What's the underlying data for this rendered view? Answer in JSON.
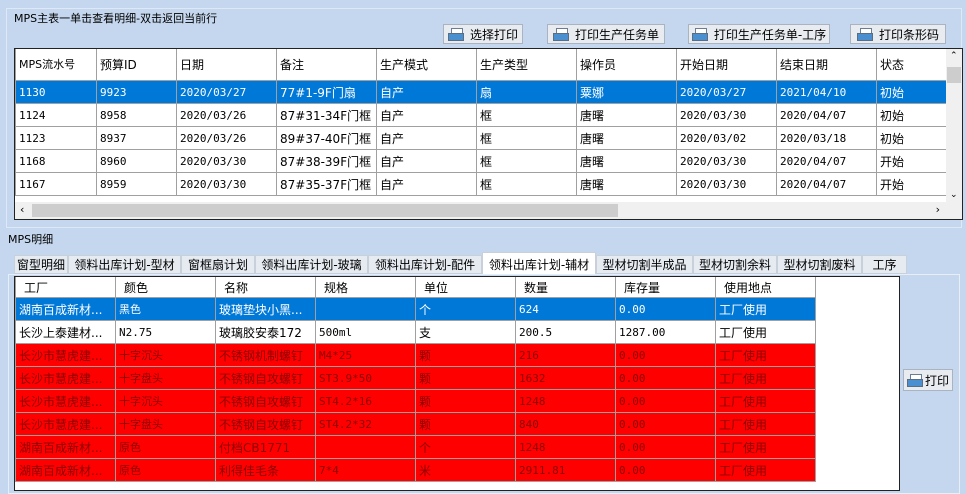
{
  "master": {
    "title": "MPS主表一单击查看明细-双击返回当前行",
    "buttons": [
      "选择打印",
      "打印生产任务单",
      "打印生产任务单-工序",
      "打印条形码"
    ],
    "columns": [
      "MPS流水号",
      "预算ID",
      "日期",
      "备注",
      "生产模式",
      "生产类型",
      "操作员",
      "开始日期",
      "结束日期",
      "状态"
    ],
    "rows": [
      [
        "1130",
        "9923",
        "2020/03/27",
        "77#1-9F门扇",
        "自产",
        "扇",
        "粟娜",
        "2020/03/27",
        "2021/04/10",
        "初始"
      ],
      [
        "1124",
        "8958",
        "2020/03/26",
        "87#31-34F门框",
        "自产",
        "框",
        "唐曙",
        "2020/03/30",
        "2020/04/07",
        "初始"
      ],
      [
        "1123",
        "8937",
        "2020/03/26",
        "89#37-40F门框",
        "自产",
        "框",
        "唐曙",
        "2020/03/02",
        "2020/03/18",
        "初始"
      ],
      [
        "1168",
        "8960",
        "2020/03/30",
        "87#38-39F门框",
        "自产",
        "框",
        "唐曙",
        "2020/03/30",
        "2020/04/07",
        "开始"
      ],
      [
        "1167",
        "8959",
        "2020/03/30",
        "87#35-37F门框",
        "自产",
        "框",
        "唐曙",
        "2020/03/30",
        "2020/04/07",
        "开始"
      ]
    ],
    "selected_row": 0
  },
  "detail": {
    "title": "MPS明细",
    "tabs": [
      "窗型明细",
      "领料出库计划-型材",
      "窗框扇计划",
      "领料出库计划-玻璃",
      "领料出库计划-配件",
      "领料出库计划-辅材",
      "型材切割半成品",
      "型材切割余料",
      "型材切割废料",
      "工序"
    ],
    "active_tab": 5,
    "columns": [
      "工厂",
      "颜色",
      "名称",
      "规格",
      "单位",
      "数量",
      "库存量",
      "使用地点"
    ],
    "rows": [
      [
        "湖南百成新材...",
        "黑色",
        "玻璃垫块小黑...",
        "",
        "个",
        "624",
        "0.00",
        "工厂使用"
      ],
      [
        "长沙上泰建材...",
        "N2.75",
        "玻璃胶安泰172",
        "500ml",
        "支",
        "200.5",
        "1287.00",
        "工厂使用"
      ],
      [
        "长沙市慧虎建...",
        "十字沉头",
        "不锈钢机制螺钉",
        "M4*25",
        "颗",
        "216",
        "0.00",
        "工厂使用"
      ],
      [
        "长沙市慧虎建...",
        "十字盘头",
        "不锈钢自攻螺钉",
        "ST3.9*50",
        "颗",
        "1632",
        "0.00",
        "工厂使用"
      ],
      [
        "长沙市慧虎建...",
        "十字沉头",
        "不锈钢自攻螺钉",
        "ST4.2*16",
        "颗",
        "1248",
        "0.00",
        "工厂使用"
      ],
      [
        "长沙市慧虎建...",
        "十字盘头",
        "不锈钢自攻螺钉",
        "ST4.2*32",
        "颗",
        "840",
        "0.00",
        "工厂使用"
      ],
      [
        "湖南百成新材...",
        "原色",
        "付档CB1771",
        "",
        "个",
        "1248",
        "0.00",
        "工厂使用"
      ],
      [
        "湖南百成新材...",
        "原色",
        "利得佳毛条",
        "7*4",
        "米",
        "2911.81",
        "0.00",
        "工厂使用"
      ]
    ],
    "row_states": [
      "selected",
      "normal",
      "red",
      "red",
      "red",
      "red",
      "red",
      "red"
    ],
    "print_label": "打印"
  },
  "colors": {
    "selected": "#0078d7",
    "warning_row": "#ff0000",
    "background": "#c5d7ee"
  }
}
